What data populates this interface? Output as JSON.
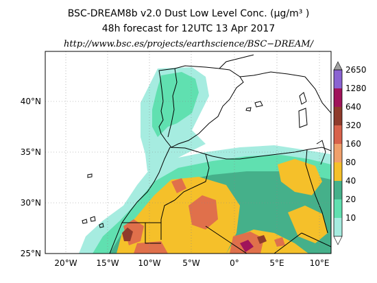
{
  "title": {
    "line1": "BSC-DREAM8b v2.0 Dust Low Level Conc. (μg/m³ )",
    "line2": "48h forecast for 12UTC 13 Apr 2017",
    "url": "http://www.bsc.es/projects/earthscience/BSC−DREAM/"
  },
  "axes": {
    "lat_ticks": [
      "40°N",
      "35°N",
      "30°N",
      "25°N"
    ],
    "lon_ticks": [
      "20°W",
      "15°W",
      "10°W",
      "5°W",
      "0°",
      "5°E",
      "10°E"
    ]
  },
  "colorbar": {
    "levels": [
      "2650",
      "1280",
      "640",
      "320",
      "160",
      "80",
      "40",
      "20",
      "10"
    ],
    "colors": [
      "#8a63d2",
      "#a0135a",
      "#8f3b2b",
      "#d8624b",
      "#f0a06b",
      "#f5c02a",
      "#45b08a",
      "#60e0b0",
      "#a6ece0"
    ]
  },
  "colors": {
    "sea": "#ffffff",
    "land_low": "#60e0b0",
    "land_medium": "#45b08a",
    "land_high": "#f5c02a",
    "land_very_high": "#e0704b",
    "land_extreme": "#a0135a"
  }
}
